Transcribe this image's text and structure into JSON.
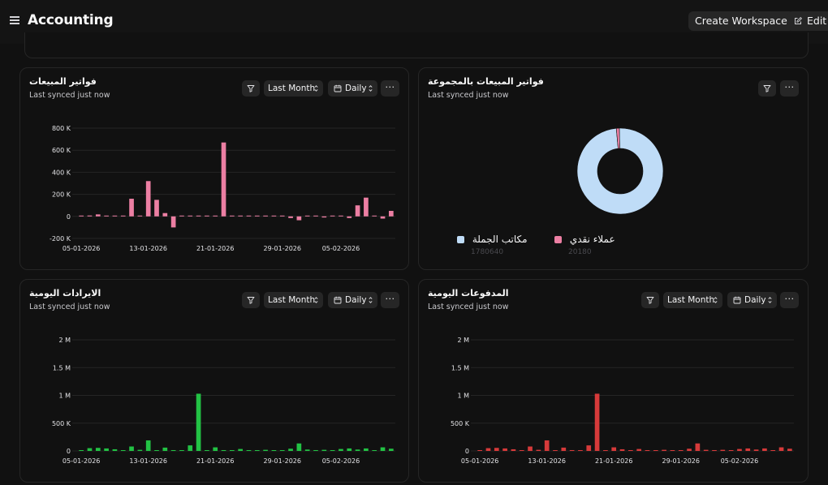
{
  "app": {
    "title": "Accounting"
  },
  "header": {
    "create_workspace_label": "Create Workspace",
    "edit_label": "Edit"
  },
  "colors": {
    "pink": "#ec7fa3",
    "green": "#22c244",
    "red": "#d63a3a",
    "light_blue": "#bfdcf7"
  },
  "controls": {
    "period_label": "Last Month",
    "granularity_label": "Daily",
    "more_label": "···"
  },
  "cards": {
    "sales_invoices": {
      "title": "فواتير المبيعات",
      "subtitle": "Last synced just now"
    },
    "sales_by_group": {
      "title": "فواتير المبيعات بالمجموعة",
      "subtitle": "Last synced just now"
    },
    "daily_revenue": {
      "title": "الايرادات اليومية",
      "subtitle": "Last synced just now"
    },
    "daily_payments": {
      "title": "المدفوعات اليومية",
      "subtitle": "Last synced just now"
    }
  },
  "chart_data": [
    {
      "id": "sales_invoices",
      "type": "bar",
      "title": "فواتير المبيعات",
      "color": "#ec7fa3",
      "x_ticks": [
        "05-01-2026",
        "13-01-2026",
        "21-01-2026",
        "29-01-2026",
        "05-02-2026"
      ],
      "y_ticks": [
        "800 K",
        "600 K",
        "400 K",
        "200 K",
        "0",
        "-200 K"
      ],
      "y_tick_values": [
        800000,
        600000,
        400000,
        200000,
        0,
        -200000
      ],
      "ylim": [
        -200000,
        800000
      ],
      "values": [
        0,
        8000,
        18000,
        0,
        0,
        0,
        160000,
        0,
        320000,
        150000,
        30000,
        -100000,
        0,
        0,
        0,
        0,
        0,
        670000,
        0,
        0,
        0,
        0,
        0,
        0,
        0,
        -15000,
        -35000,
        0,
        0,
        -10000,
        0,
        0,
        -15000,
        100000,
        170000,
        0,
        -20000,
        50000
      ]
    },
    {
      "id": "sales_by_group",
      "type": "pie",
      "title": "فواتير المبيعات بالمجموعة",
      "slices": [
        {
          "label": "مكاتب الجملة",
          "value": 1780640,
          "value_label": "1780640",
          "color": "#bfdcf7"
        },
        {
          "label": "عملاء نقدي",
          "value": 20180,
          "value_label": "20180",
          "color": "#ec7fa3"
        }
      ]
    },
    {
      "id": "daily_revenue",
      "type": "bar",
      "title": "الايرادات اليومية",
      "color": "#22c244",
      "x_ticks": [
        "05-01-2026",
        "13-01-2026",
        "21-01-2026",
        "29-01-2026",
        "05-02-2026"
      ],
      "y_ticks": [
        "2 M",
        "1.5 M",
        "1 M",
        "500 K",
        "0"
      ],
      "y_tick_values": [
        2000000,
        1500000,
        1000000,
        500000,
        0
      ],
      "ylim": [
        0,
        2000000
      ],
      "values": [
        0,
        50000,
        55000,
        45000,
        30000,
        0,
        80000,
        20000,
        190000,
        0,
        60000,
        15000,
        0,
        100000,
        1030000,
        0,
        65000,
        15000,
        0,
        35000,
        0,
        10000,
        20000,
        0,
        0,
        40000,
        135000,
        25000,
        15000,
        20000,
        0,
        35000,
        45000,
        25000,
        45000,
        0,
        65000,
        40000
      ]
    },
    {
      "id": "daily_payments",
      "type": "bar",
      "title": "المدفوعات اليومية",
      "color": "#d63a3a",
      "x_ticks": [
        "05-01-2026",
        "13-01-2026",
        "21-01-2026",
        "29-01-2026",
        "05-02-2026"
      ],
      "y_ticks": [
        "2 M",
        "1.5 M",
        "1 M",
        "500 K",
        "0"
      ],
      "y_tick_values": [
        2000000,
        1500000,
        1000000,
        500000,
        0
      ],
      "ylim": [
        0,
        2000000
      ],
      "values": [
        0,
        50000,
        55000,
        45000,
        30000,
        0,
        80000,
        20000,
        190000,
        0,
        60000,
        15000,
        0,
        100000,
        1030000,
        0,
        65000,
        30000,
        0,
        35000,
        0,
        10000,
        20000,
        0,
        0,
        40000,
        135000,
        20000,
        15000,
        20000,
        0,
        35000,
        45000,
        25000,
        45000,
        0,
        65000,
        40000
      ]
    }
  ]
}
